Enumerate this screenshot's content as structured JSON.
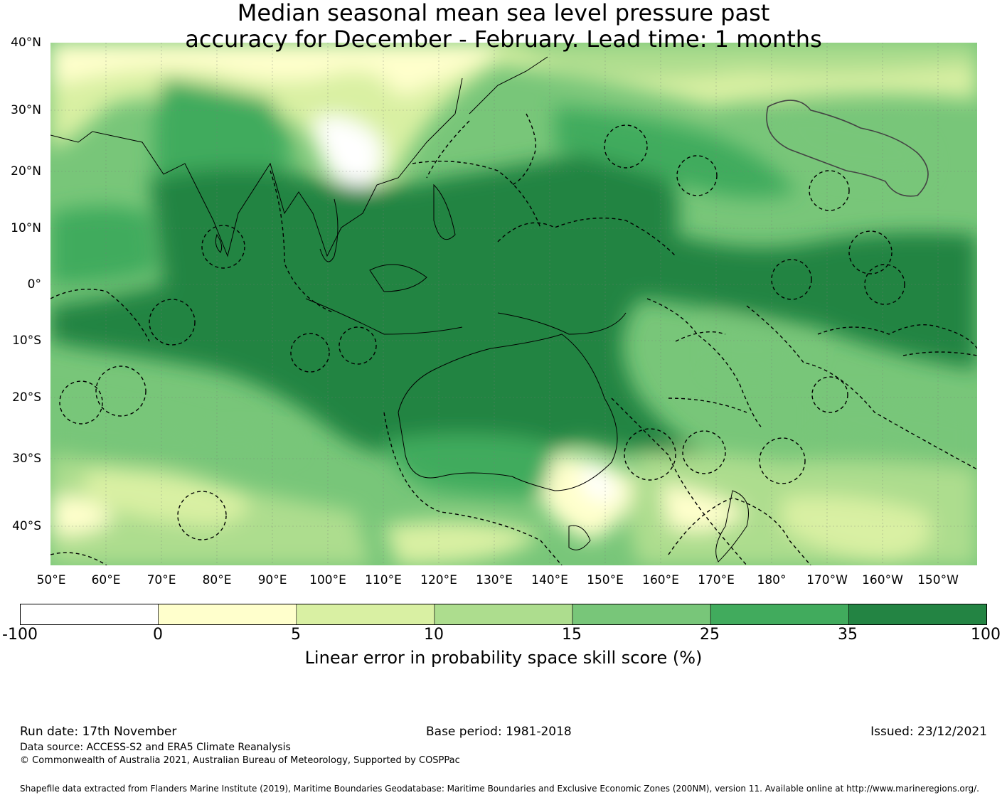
{
  "title": {
    "line1": "Median seasonal mean sea level pressure past",
    "line2": "accuracy for December - February. Lead time: 1 months"
  },
  "map": {
    "projection": "equirectangular",
    "lon_range": [
      50,
      217
    ],
    "lat_range": [
      -46,
      40
    ],
    "lat_labels": [
      {
        "lat": 40,
        "text": "40°N"
      },
      {
        "lat": 30,
        "text": "30°N"
      },
      {
        "lat": 20,
        "text": "20°N"
      },
      {
        "lat": 10,
        "text": "10°N"
      },
      {
        "lat": 0,
        "text": "0°"
      },
      {
        "lat": -10,
        "text": "10°S"
      },
      {
        "lat": -20,
        "text": "20°S"
      },
      {
        "lat": -30,
        "text": "30°S"
      },
      {
        "lat": -40,
        "text": "40°S"
      }
    ],
    "lon_labels": [
      {
        "lon": 50,
        "text": "50°E"
      },
      {
        "lon": 60,
        "text": "60°E"
      },
      {
        "lon": 70,
        "text": "70°E"
      },
      {
        "lon": 80,
        "text": "80°E"
      },
      {
        "lon": 90,
        "text": "90°E"
      },
      {
        "lon": 100,
        "text": "100°E"
      },
      {
        "lon": 110,
        "text": "110°E"
      },
      {
        "lon": 120,
        "text": "120°E"
      },
      {
        "lon": 130,
        "text": "130°E"
      },
      {
        "lon": 140,
        "text": "140°E"
      },
      {
        "lon": 150,
        "text": "150°E"
      },
      {
        "lon": 160,
        "text": "160°E"
      },
      {
        "lon": 170,
        "text": "170°E"
      },
      {
        "lon": 180,
        "text": "180°"
      },
      {
        "lon": 190,
        "text": "170°W"
      },
      {
        "lon": 200,
        "text": "160°W"
      },
      {
        "lon": 210,
        "text": "150°W"
      }
    ],
    "grid": true
  },
  "colorbar": {
    "ticks": [
      "-100",
      "0",
      "5",
      "10",
      "15",
      "25",
      "35",
      "100"
    ],
    "colors": [
      "#ffffff",
      "#ffffcc",
      "#d9f0a3",
      "#addd8e",
      "#78c679",
      "#41ab5d",
      "#238443"
    ],
    "label": "Linear error in probability space skill score (%)"
  },
  "footer": {
    "run_date": "Run date: 17th November",
    "base_period": "Base period: 1981-2018",
    "issued": "Issued: 23/12/2021",
    "data_source": "Data source: ACCESS-S2 and ERA5 Climate Reanalysis",
    "copyright": "© Commonwealth of Australia 2021, Australian Bureau of Meteorology, Supported by COSPPac",
    "shapefile": "Shapefile data extracted from Flanders Marine Institute (2019), Maritime Boundaries Geodatabase: Maritime Boundaries and Exclusive Economic Zones (200NM), version 11. Available online at http://www.marineregions.org/."
  }
}
